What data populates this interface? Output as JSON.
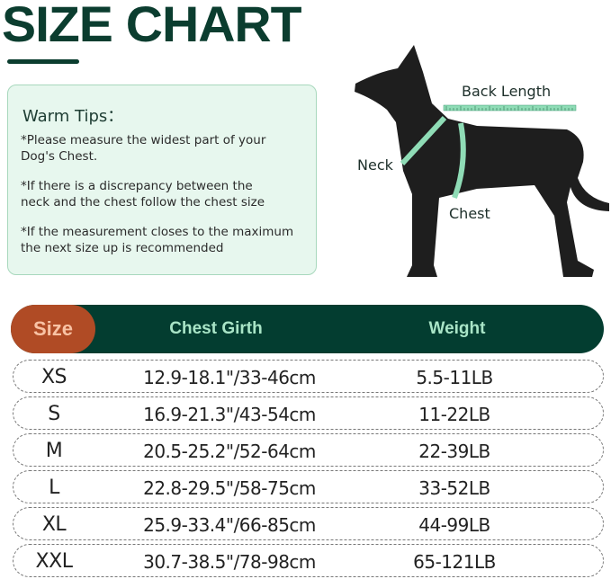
{
  "title": "SIZE CHART",
  "tips": {
    "heading": "Warm Tips：",
    "items": [
      [
        "*Please measure the widest part of your",
        " Dog's Chest."
      ],
      [
        "*If there is a discrepancy between the",
        " neck and the chest follow the chest size"
      ],
      [
        "*If the measurement closes to the maximum",
        " the next size up is recommended"
      ]
    ]
  },
  "diagram": {
    "back_length": "Back Length",
    "neck": "Neck",
    "chest": "Chest"
  },
  "table": {
    "headers": [
      "Size",
      "Chest Girth",
      "Weight"
    ],
    "rows": [
      [
        "XS",
        "12.9-18.1\"/33-46cm",
        "5.5-11LB"
      ],
      [
        "S",
        "16.9-21.3\"/43-54cm",
        "11-22LB"
      ],
      [
        "M",
        "20.5-25.2\"/52-64cm",
        "22-39LB"
      ],
      [
        "L",
        "22.8-29.5\"/58-75cm",
        "33-52LB"
      ],
      [
        "XL",
        "25.9-33.4\"/66-85cm",
        "44-99LB"
      ],
      [
        "XXL",
        "30.7-38.5\"/78-98cm",
        "65-121LB"
      ]
    ]
  },
  "colors": {
    "dark_green": "#033d30",
    "orange": "#b04b25",
    "mint": "#a9e5c7",
    "tape": "#7fd6ac"
  }
}
